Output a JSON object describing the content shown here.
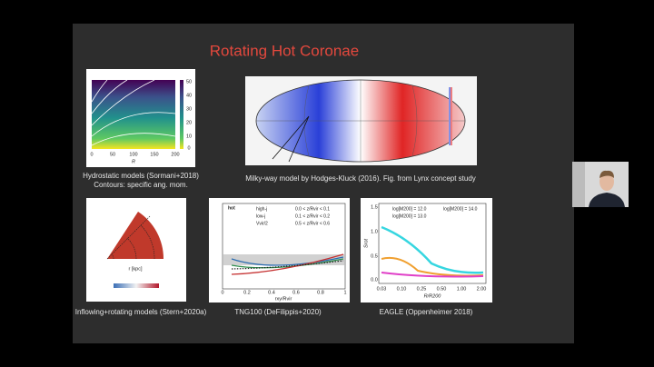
{
  "slide": {
    "title": "Rotating Hot Coronae",
    "panels": [
      {
        "caption": [
          "Hydrostatic models (Sormani+2018)",
          "Contours: specific ang. mom."
        ],
        "x_ticks": [
          "0",
          "50",
          "100",
          "150",
          "200"
        ],
        "x_label": "R",
        "colorbar_ticks": [
          "50",
          "40",
          "30",
          "20",
          "10",
          "0"
        ]
      },
      {
        "caption": [
          "Milky-way model by Hodges-Kluck (2016). Fig. from Lynx concept study"
        ]
      },
      {
        "caption": [
          "Inflowing+rotating models (Stern+2020a)"
        ],
        "x_label": "r [kpc]"
      },
      {
        "caption": [
          "TNG100 (DeFilippis+2020)"
        ],
        "tag": "hot",
        "legend": [
          "high-j",
          "low-j",
          "Vvir/2",
          "0.0 < z/Rvir < 0.1",
          "0.1 < z/Rvir < 0.2",
          "0.5 < z/Rvir < 0.6"
        ],
        "x_ticks": [
          "0",
          "0.2",
          "0.4",
          "0.6",
          "0.8",
          "1"
        ],
        "x_label": "rxy/Rvir"
      },
      {
        "caption": [
          "EAGLE (Oppenheimer 2018)"
        ],
        "legend": [
          "log[M200] = 12.0",
          "log[M200] = 13.0",
          "log[M200] = 14.0"
        ],
        "x_ticks": [
          "0.03",
          "0.10",
          "0.25",
          "0.50",
          "1.00",
          "2.00"
        ],
        "x_label": "R/R200",
        "y_ticks": [
          "1.5",
          "1.0",
          "0.5",
          "0.0"
        ],
        "y_label": "Srot"
      }
    ]
  }
}
